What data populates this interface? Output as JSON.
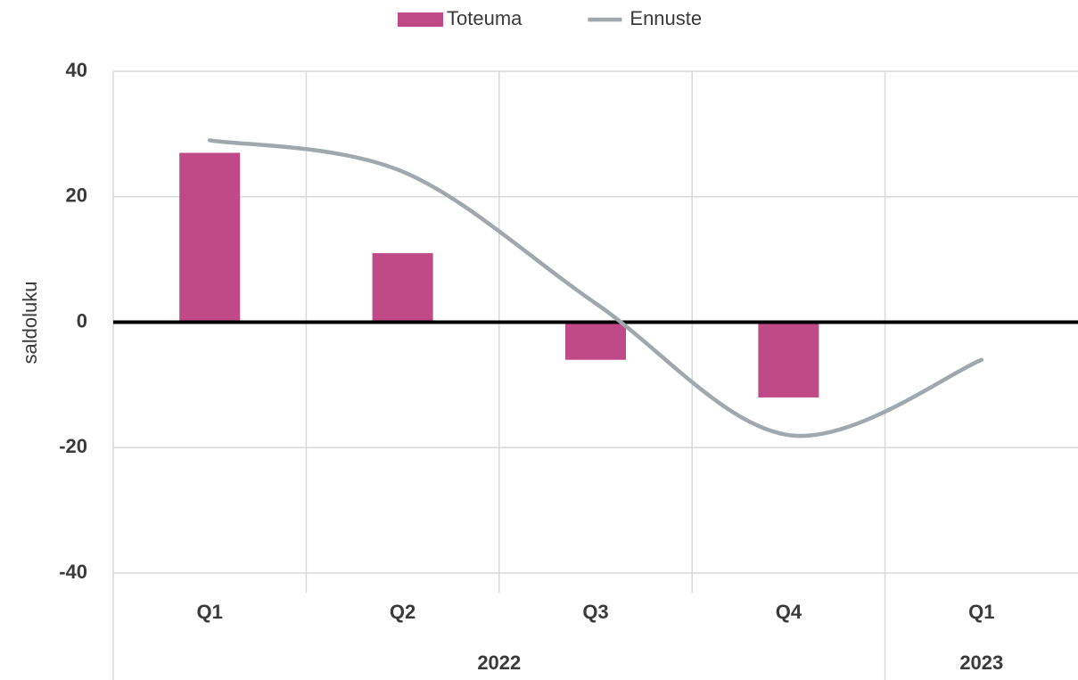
{
  "chart_data": {
    "type": "bar-line",
    "y_label": "saldoluku",
    "categories": [
      "Q1",
      "Q2",
      "Q3",
      "Q4",
      "Q1"
    ],
    "groups": [
      {
        "label": "2022",
        "span": 4
      },
      {
        "label": "2023",
        "span": 1
      }
    ],
    "series": [
      {
        "name": "Toteuma",
        "type": "bar",
        "color": "#c04a87",
        "values": [
          27,
          11,
          -6,
          -12,
          null
        ]
      },
      {
        "name": "Ennuste",
        "type": "line",
        "color": "#9ea8ad",
        "values": [
          29,
          24,
          3,
          -18,
          -6
        ]
      }
    ],
    "ylim": [
      -40,
      40
    ],
    "yticks": [
      -40,
      -20,
      0,
      20,
      40
    ],
    "grid": true,
    "legend": "top"
  }
}
